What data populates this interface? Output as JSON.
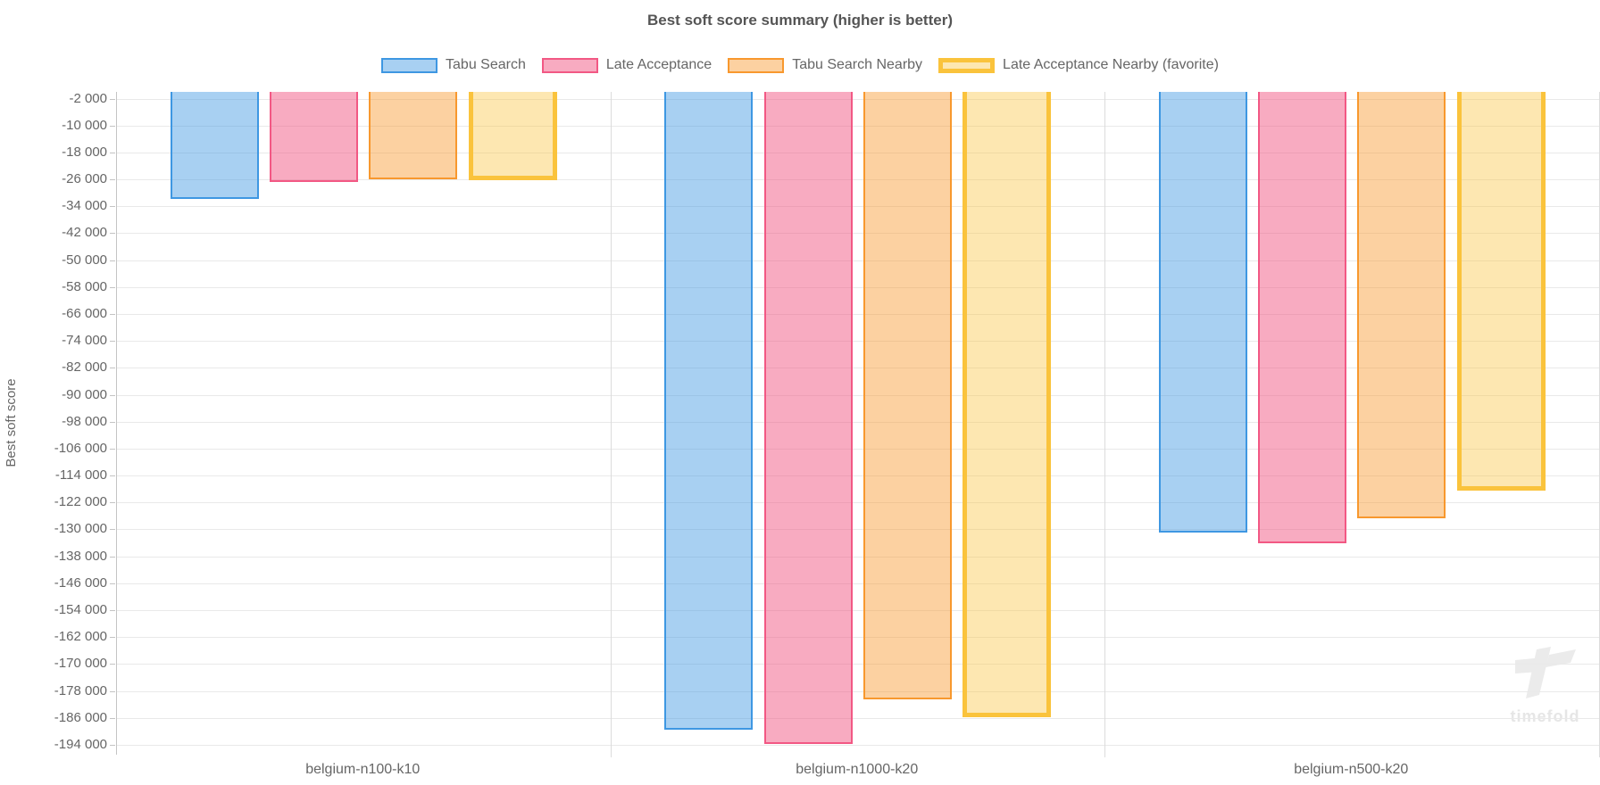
{
  "chart_data": {
    "type": "bar",
    "title": "Best soft score summary (higher is better)",
    "ylabel": "Best soft score",
    "higher_is_better": true,
    "legend_position": "top",
    "grid": true,
    "categories": [
      "belgium-n100-k10",
      "belgium-n1000-k20",
      "belgium-n500-k20"
    ],
    "series": [
      {
        "name": "Tabu Search",
        "fill": "rgba(62,151,226,0.45)",
        "border": "#3E97E2",
        "favorite": false,
        "values": [
          -31800,
          -189400,
          -130900
        ]
      },
      {
        "name": "Late Acceptance",
        "fill": "rgba(242,88,132,0.5)",
        "border": "#F25884",
        "favorite": false,
        "values": [
          -26800,
          -193700,
          -134200
        ]
      },
      {
        "name": "Tabu Search Nearby",
        "fill": "rgba(248,152,46,0.45)",
        "border": "#F8982E",
        "favorite": false,
        "values": [
          -26000,
          -180600,
          -126700
        ]
      },
      {
        "name": "Late Acceptance Nearby (favorite)",
        "fill": "rgba(250,195,60,0.4)",
        "border": "#FAC33C",
        "favorite": true,
        "values": [
          -26300,
          -185900,
          -118400
        ]
      }
    ],
    "y_axis": {
      "axis_min": -196800,
      "axis_max": 0,
      "tick_start": -2000,
      "tick_step": -8000,
      "tick_labels": [
        "-2 000",
        "-10 000",
        "-18 000",
        "-26 000",
        "-34 000",
        "-42 000",
        "-50 000",
        "-58 000",
        "-66 000",
        "-74 000",
        "-82 000",
        "-90 000",
        "-98 000",
        "-106 000",
        "-114 000",
        "-122 000",
        "-130 000",
        "-138 000",
        "-146 000",
        "-154 000",
        "-162 000",
        "-170 000",
        "-178 000",
        "-186 000",
        "-194 000"
      ]
    }
  },
  "watermark": {
    "text": "timefold"
  },
  "colors": {
    "grid": "#e9e9e9",
    "separator": "#dcdcdc",
    "axis": "#c4c4c4",
    "tick_text": "#666666",
    "title_text": "#555555",
    "watermark": "#ebebeb"
  }
}
